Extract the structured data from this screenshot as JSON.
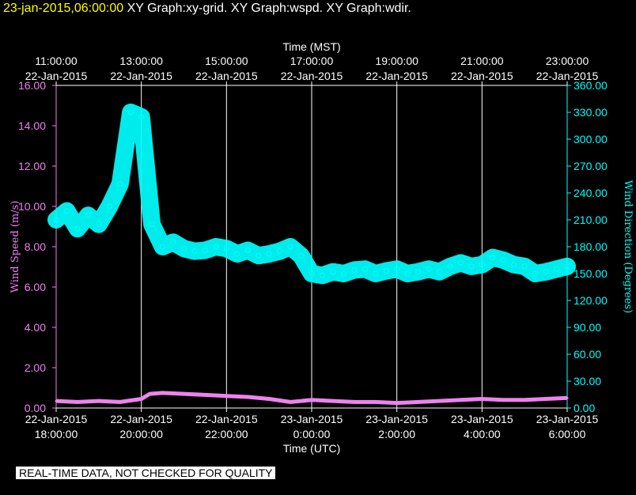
{
  "header": {
    "date": "23-jan-2015,06:00:00",
    "graphs": "XY Graph:xy-grid.  XY Graph:wspd.  XY Graph:wdir."
  },
  "notice": "REAL-TIME DATA, NOT CHECKED FOR QUALITY",
  "chart_data": {
    "type": "scatter",
    "top_axis": {
      "label": "Time (MST)",
      "ticks": [
        {
          "time": "11:00:00",
          "date": "22-Jan-2015"
        },
        {
          "time": "13:00:00",
          "date": "22-Jan-2015"
        },
        {
          "time": "15:00:00",
          "date": "22-Jan-2015"
        },
        {
          "time": "17:00:00",
          "date": "22-Jan-2015"
        },
        {
          "time": "19:00:00",
          "date": "22-Jan-2015"
        },
        {
          "time": "21:00:00",
          "date": "22-Jan-2015"
        },
        {
          "time": "23:00:00",
          "date": "22-Jan-2015"
        }
      ]
    },
    "bottom_axis": {
      "label": "Time (UTC)",
      "ticks": [
        {
          "date": "22-Jan-2015",
          "time": "18:00:00"
        },
        {
          "date": "22-Jan-2015",
          "time": "20:00:00"
        },
        {
          "date": "22-Jan-2015",
          "time": "22:00:00"
        },
        {
          "date": "23-Jan-2015",
          "time": "0:00:00"
        },
        {
          "date": "23-Jan-2015",
          "time": "2:00:00"
        },
        {
          "date": "23-Jan-2015",
          "time": "4:00:00"
        },
        {
          "date": "23-Jan-2015",
          "time": "6:00:00"
        }
      ],
      "range_utc_hours": [
        18,
        30
      ]
    },
    "left_axis": {
      "label": "Wind Speed (m/s)",
      "ylim": [
        0,
        16
      ],
      "ticks": [
        "0.00",
        "2.00",
        "4.00",
        "6.00",
        "8.00",
        "10.00",
        "12.00",
        "14.00",
        "16.00"
      ],
      "color": "#ee82ee"
    },
    "right_axis": {
      "label": "Wind Direction (Degrees)",
      "ylim": [
        0,
        360
      ],
      "ticks": [
        "0.00",
        "30.00",
        "60.00",
        "90.00",
        "120.00",
        "150.00",
        "180.00",
        "210.00",
        "240.00",
        "270.00",
        "300.00",
        "330.00",
        "360.00"
      ],
      "color": "#00ffff"
    },
    "grid": true,
    "series": [
      {
        "axis": "left",
        "color": "#ee82ee",
        "style": "line",
        "points": [
          [
            18.0,
            0.35
          ],
          [
            18.5,
            0.3
          ],
          [
            19.0,
            0.35
          ],
          [
            19.5,
            0.3
          ],
          [
            20.0,
            0.45
          ],
          [
            20.2,
            0.7
          ],
          [
            20.5,
            0.75
          ],
          [
            21.0,
            0.7
          ],
          [
            21.5,
            0.65
          ],
          [
            22.0,
            0.6
          ],
          [
            22.5,
            0.55
          ],
          [
            23.0,
            0.45
          ],
          [
            23.5,
            0.3
          ],
          [
            24.0,
            0.4
          ],
          [
            24.5,
            0.35
          ],
          [
            25.0,
            0.3
          ],
          [
            25.5,
            0.3
          ],
          [
            26.0,
            0.25
          ],
          [
            26.5,
            0.3
          ],
          [
            27.0,
            0.35
          ],
          [
            27.5,
            0.4
          ],
          [
            28.0,
            0.45
          ],
          [
            28.5,
            0.4
          ],
          [
            29.0,
            0.4
          ],
          [
            29.5,
            0.45
          ],
          [
            30.0,
            0.5
          ]
        ]
      },
      {
        "axis": "right",
        "color": "#00ffff",
        "style": "markers",
        "points": [
          [
            18.0,
            210
          ],
          [
            18.25,
            220
          ],
          [
            18.5,
            200
          ],
          [
            18.75,
            215
          ],
          [
            19.0,
            205
          ],
          [
            19.25,
            225
          ],
          [
            19.5,
            250
          ],
          [
            19.75,
            330
          ],
          [
            20.0,
            325
          ],
          [
            20.25,
            205
          ],
          [
            20.5,
            180
          ],
          [
            20.75,
            185
          ],
          [
            21.0,
            178
          ],
          [
            21.25,
            175
          ],
          [
            21.5,
            176
          ],
          [
            21.75,
            180
          ],
          [
            22.0,
            178
          ],
          [
            22.25,
            172
          ],
          [
            22.5,
            176
          ],
          [
            22.75,
            170
          ],
          [
            23.0,
            172
          ],
          [
            23.25,
            175
          ],
          [
            23.5,
            180
          ],
          [
            23.75,
            170
          ],
          [
            24.0,
            150
          ],
          [
            24.25,
            148
          ],
          [
            24.5,
            152
          ],
          [
            24.75,
            150
          ],
          [
            25.0,
            154
          ],
          [
            25.25,
            155
          ],
          [
            25.5,
            150
          ],
          [
            25.75,
            153
          ],
          [
            26.0,
            155
          ],
          [
            26.25,
            150
          ],
          [
            26.5,
            152
          ],
          [
            26.75,
            155
          ],
          [
            27.0,
            152
          ],
          [
            27.25,
            158
          ],
          [
            27.5,
            162
          ],
          [
            27.75,
            158
          ],
          [
            28.0,
            160
          ],
          [
            28.25,
            168
          ],
          [
            28.5,
            165
          ],
          [
            28.75,
            160
          ],
          [
            29.0,
            158
          ],
          [
            29.25,
            150
          ],
          [
            29.5,
            152
          ],
          [
            29.75,
            155
          ],
          [
            30.0,
            158
          ]
        ]
      }
    ]
  }
}
